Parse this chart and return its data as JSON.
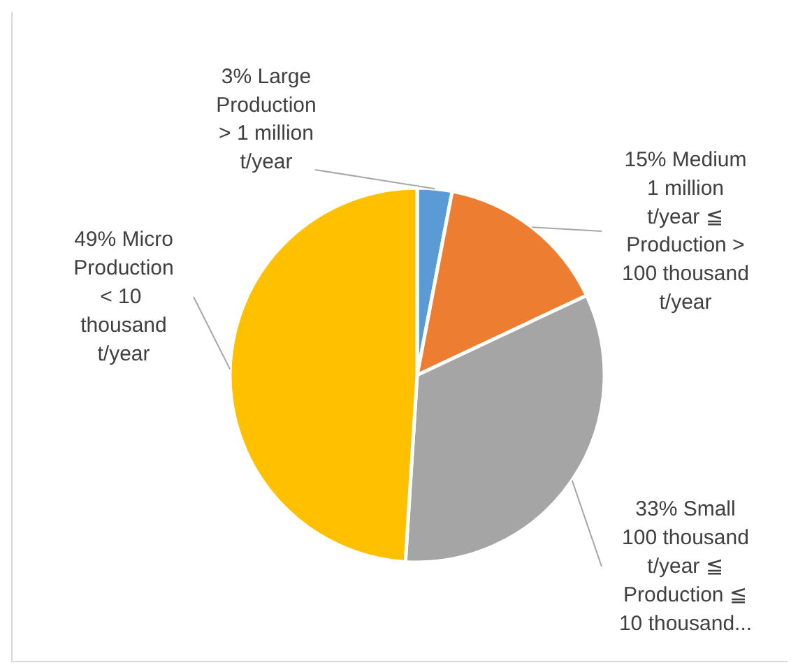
{
  "chart_data": {
    "type": "pie",
    "categories": [
      "Large\nProduction\n> 1 million\nt/year",
      "Medium\n1 million\nt/year ≦\nProduction >\n100 thousand\nt/year",
      "Small\n100 thousand\nt/year ≦\nProduction ≦\n10 thousand...",
      "Micro\nProduction\n<  10\nthousand\nt/year"
    ],
    "values": [
      3,
      15,
      33,
      49
    ],
    "value_labels": [
      "3%",
      "15%",
      "33%",
      "49%"
    ],
    "colors": [
      "#5b9bd5",
      "#ed7d31",
      "#a5a5a5",
      "#ffc000"
    ]
  }
}
